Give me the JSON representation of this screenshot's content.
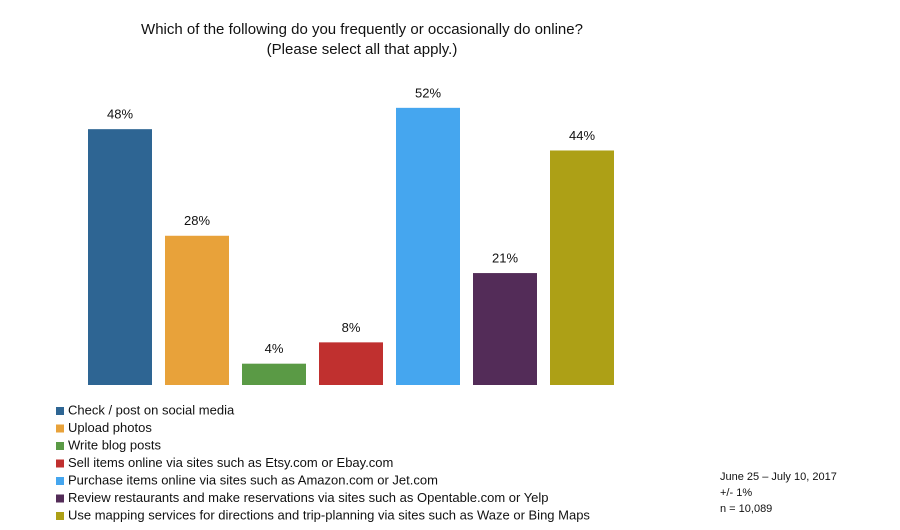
{
  "chart_data": {
    "type": "bar",
    "title": "Which of the following do you frequently or occasionally do online?",
    "subtitle": "(Please select all that apply.)",
    "categories": [
      "Check / post on social media",
      "Upload photos",
      "Write blog posts",
      "Sell items online via sites such as Etsy.com or Ebay.com",
      "Purchase items online via sites such as Amazon.com or Jet.com",
      "Review restaurants and make reservations via sites such as Opentable.com or Yelp",
      "Use mapping services for directions and trip-planning via sites such as Waze or Bing Maps"
    ],
    "values": [
      48,
      28,
      4,
      8,
      52,
      21,
      44
    ],
    "value_labels": [
      "48%",
      "28%",
      "4%",
      "8%",
      "52%",
      "21%",
      "44%"
    ],
    "colors": [
      "#2e6593",
      "#e8a23a",
      "#5a9a45",
      "#c0302f",
      "#45a6ef",
      "#532c58",
      "#ada016"
    ],
    "notes": [
      "June 25 – July 10, 2017",
      "+/- 1%",
      "n = 10,089"
    ]
  }
}
